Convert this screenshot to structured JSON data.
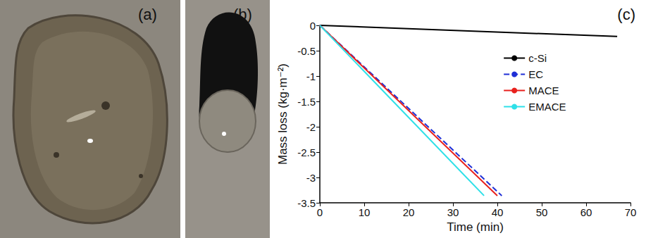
{
  "photos": [
    {
      "label": "(a)"
    },
    {
      "label": "(b)"
    }
  ],
  "chart_data": {
    "type": "line",
    "label": "(c)",
    "x_label": "Time (min)",
    "y_label": "Mass loss (kg·m⁻²)",
    "xlim": [
      0,
      70
    ],
    "xticks": [
      0,
      10,
      20,
      30,
      40,
      50,
      60,
      70
    ],
    "ylim": [
      -3.5,
      0
    ],
    "yticks": [
      -3.5,
      -3,
      -2.5,
      -2,
      -1.5,
      -1,
      -0.5,
      0
    ],
    "grid": false,
    "legend": "top-right",
    "series": [
      {
        "name": "c-Si",
        "color": "#000000",
        "line_style": "solid",
        "x": [
          0,
          67
        ],
        "values": [
          0,
          -0.22
        ]
      },
      {
        "name": "EC",
        "color": "#1f2fd6",
        "line_style": "dashed",
        "x": [
          0,
          41
        ],
        "values": [
          0,
          -3.36
        ]
      },
      {
        "name": "MACE",
        "color": "#e8201c",
        "line_style": "solid",
        "x": [
          0,
          40
        ],
        "values": [
          0,
          -3.36
        ]
      },
      {
        "name": "EMACE",
        "color": "#2ee0e8",
        "line_style": "solid",
        "x": [
          0,
          37
        ],
        "values": [
          0,
          -3.36
        ]
      }
    ]
  }
}
